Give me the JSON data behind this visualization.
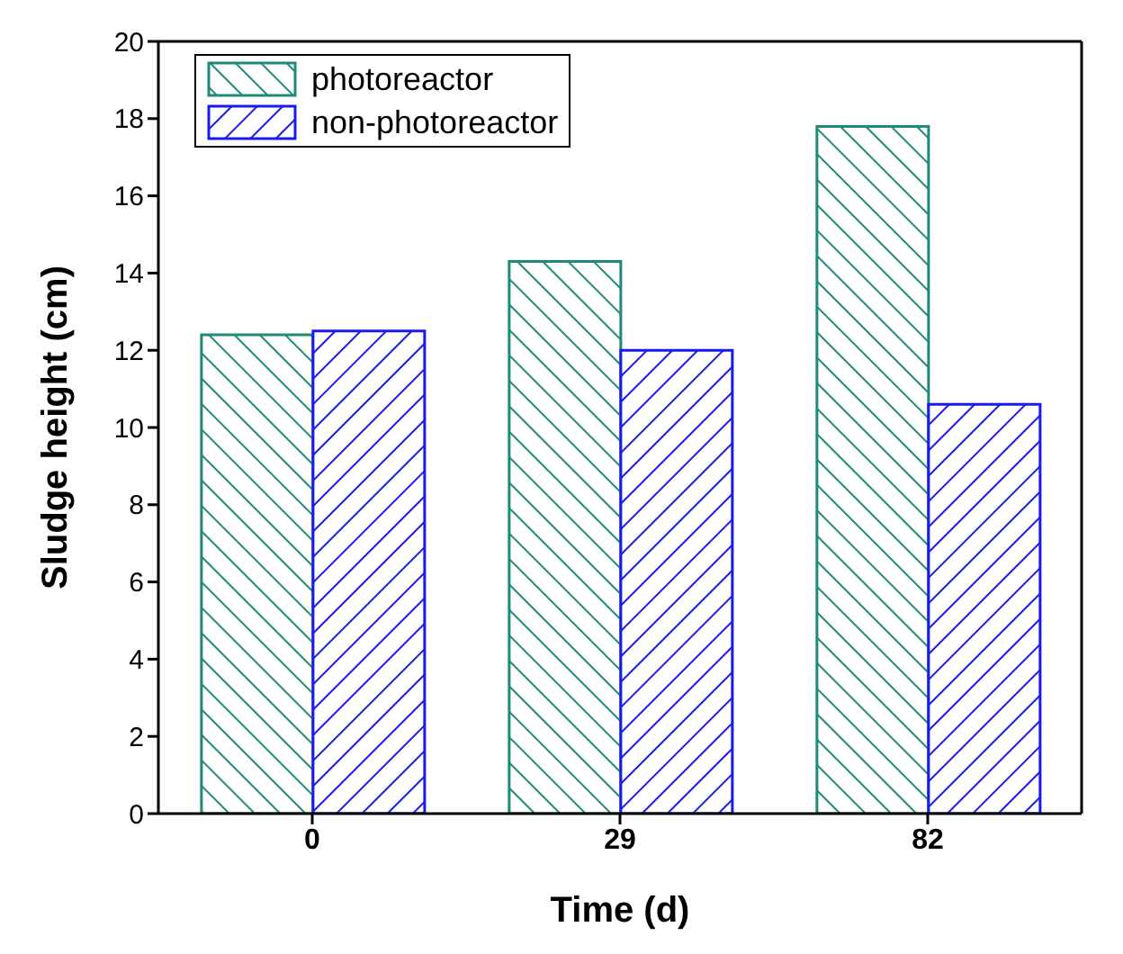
{
  "chart_data": {
    "type": "bar",
    "xlabel": "Time (d)",
    "ylabel": "Sludge height (cm)",
    "categories": [
      "0",
      "29",
      "82"
    ],
    "series": [
      {
        "name": "photoreactor",
        "color": "#1f8a78",
        "values": [
          12.4,
          14.3,
          17.8
        ]
      },
      {
        "name": "non-photoreactor",
        "color": "#1a1aee",
        "values": [
          12.5,
          12.0,
          10.6
        ]
      }
    ],
    "ylim": [
      0,
      20
    ],
    "yticks": [
      0,
      2,
      4,
      6,
      8,
      10,
      12,
      14,
      16,
      18,
      20
    ],
    "legend": "top left",
    "grid": false
  }
}
